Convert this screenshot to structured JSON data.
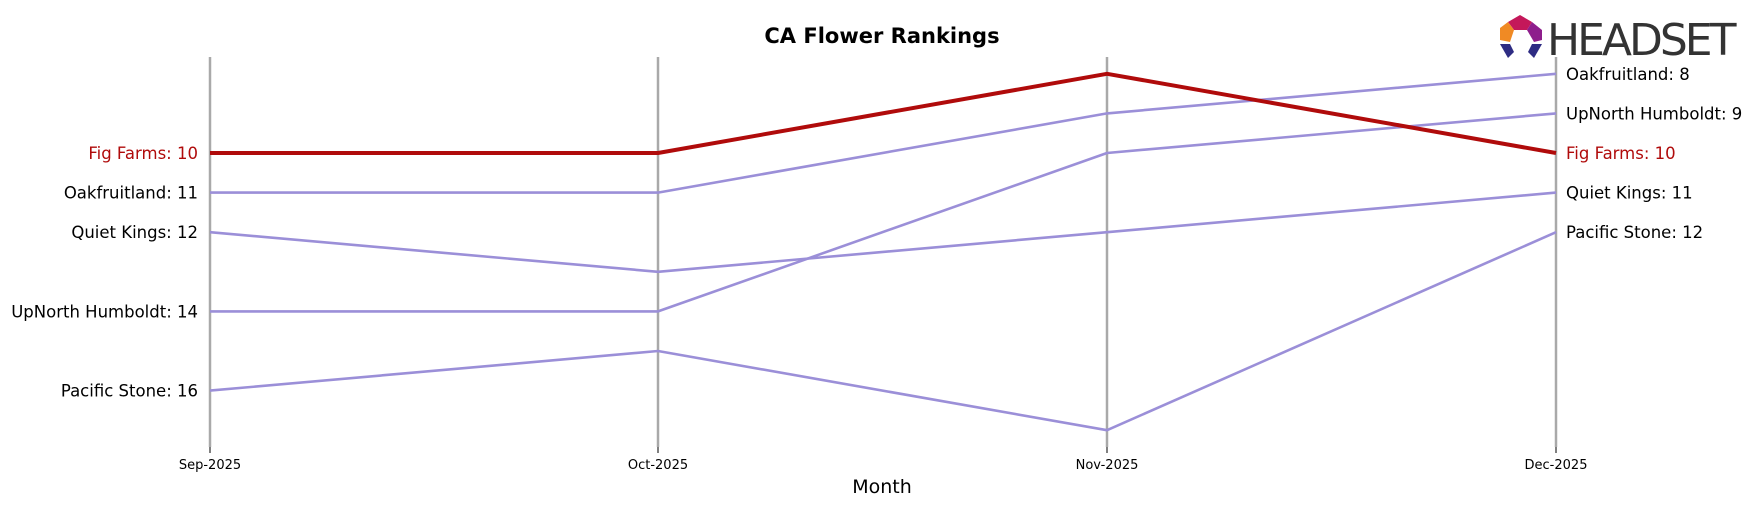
{
  "chart_data": {
    "type": "line",
    "title": "CA Flower Rankings",
    "xlabel": "Month",
    "ylabel": "",
    "x": [
      "Sep-2025",
      "Oct-2025",
      "Nov-2025",
      "Dec-2025"
    ],
    "y_inverted": true,
    "ylim": [
      18,
      6
    ],
    "grid": "vertical lines at each month",
    "series": [
      {
        "name": "Fig Farms",
        "values": [
          10,
          10,
          8,
          10
        ],
        "highlight": true
      },
      {
        "name": "Oakfruitland",
        "values": [
          11,
          11,
          9,
          8
        ]
      },
      {
        "name": "Quiet Kings",
        "values": [
          12,
          13,
          12,
          11
        ]
      },
      {
        "name": "UpNorth Humboldt",
        "values": [
          14,
          14,
          10,
          9
        ]
      },
      {
        "name": "Pacific Stone",
        "values": [
          16,
          15,
          17,
          12
        ]
      }
    ],
    "left_labels": [
      "Fig Farms: 10",
      "Oakfruitland: 11",
      "Quiet Kings: 12",
      "UpNorth Humboldt: 14",
      "Pacific Stone: 16"
    ],
    "right_labels": [
      "Oakfruitland: 8",
      "UpNorth Humboldt: 9",
      "Fig Farms: 10",
      "Quiet Kings: 11",
      "Pacific Stone: 12"
    ],
    "colors": {
      "highlight": "#B00B0B",
      "other": "#9B8FD8",
      "grid": "#A9A9A9"
    }
  },
  "logo": {
    "text": "HEADSET"
  }
}
